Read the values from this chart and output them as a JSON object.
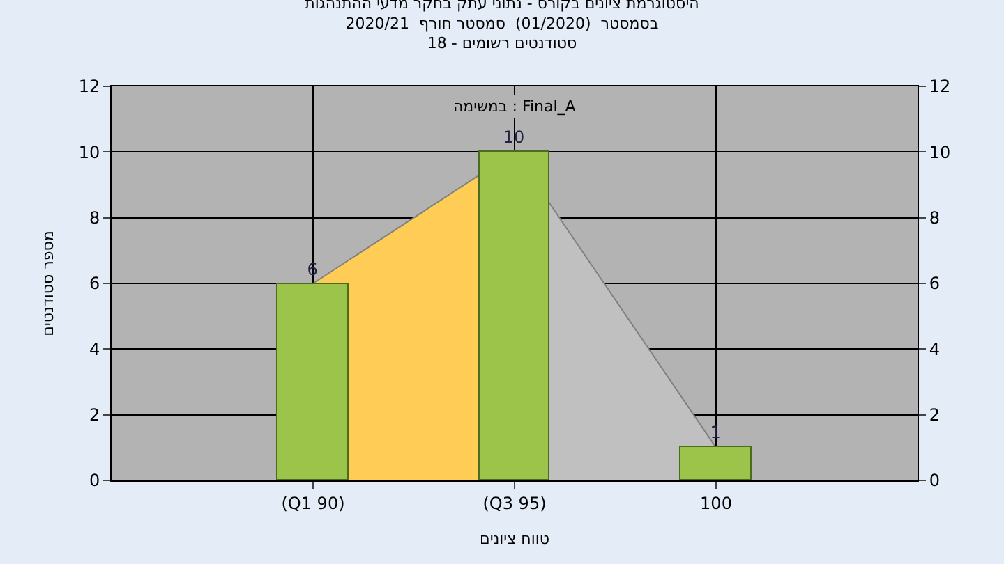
{
  "chart_data": {
    "type": "bar",
    "title": "היסטוגרמת ציונים בקורס - נתוני עתק בחקר מדעי ההתנהגות\nבסמסטר  (01/2020)  סמסטר חורף  2020/21\nסטודנטים רשומים - 18",
    "xlabel": "טווח ציונים",
    "ylabel": "מספר סטודנטים",
    "categories": [
      "(Q1 90)",
      "(Q3 95)",
      "100"
    ],
    "series": [
      {
        "type": "area",
        "color": "#ffcc55",
        "values": [
          6,
          10,
          null
        ]
      },
      {
        "type": "area",
        "color": "#c0c0c0",
        "values": [
          null,
          10,
          1
        ]
      },
      {
        "color": "#9cc44a",
        "values": [
          6,
          10,
          1
        ],
        "value_labels": [
          "6",
          "10",
          "1"
        ]
      }
    ],
    "annotations": [
      "במשימה : Final_A"
    ],
    "ylim": [
      0,
      12
    ],
    "yticks": [
      0,
      2,
      4,
      6,
      8,
      10,
      12
    ],
    "y2lim": [
      0,
      12
    ],
    "y2ticks": [
      0,
      2,
      4,
      6,
      8,
      10,
      12
    ],
    "grid": true
  }
}
